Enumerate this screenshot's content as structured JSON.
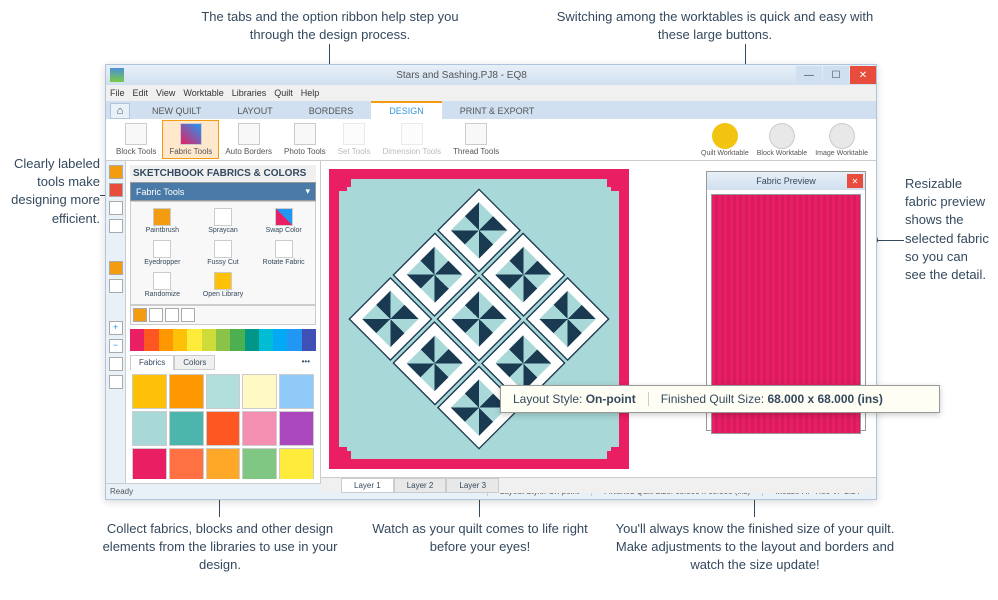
{
  "callouts": {
    "top_left": "The tabs and the option ribbon help step you through the design process.",
    "top_right": "Switching among the worktables is quick and easy with these large buttons.",
    "left": "Clearly labeled tools make designing more efficient.",
    "right": "Resizable fabric preview shows the selected fabric so you can see the detail.",
    "bottom_1": "Collect fabrics, blocks and other design elements from the libraries to use in your design.",
    "bottom_2": "Watch as your quilt comes to life right before your eyes!",
    "bottom_3": "You'll always know the finished size of your quilt. Make adjustments to the layout and borders and watch the size update!"
  },
  "window": {
    "title": "Stars and Sashing.PJ8 - EQ8",
    "menus": [
      "File",
      "Edit",
      "View",
      "Worktable",
      "Libraries",
      "Quilt",
      "Help"
    ],
    "tabs": [
      "NEW QUILT",
      "LAYOUT",
      "BORDERS",
      "DESIGN",
      "PRINT & EXPORT"
    ],
    "active_tab": 3,
    "ribbon_tools": [
      "Block Tools",
      "Fabric Tools",
      "Auto Borders",
      "Photo Tools",
      "Set Tools",
      "Dimension Tools",
      "Thread Tools"
    ],
    "ribbon_active": 1,
    "worktable_buttons": [
      {
        "label": "Quilt Worktable",
        "color": "#f1c40f"
      },
      {
        "label": "Block Worktable",
        "color": "#e8e8e8"
      },
      {
        "label": "Image Worktable",
        "color": "#e8e8e8"
      }
    ]
  },
  "side_panel": {
    "title": "SKETCHBOOK FABRICS & COLORS",
    "subtitle": "Fabric Tools",
    "tools": [
      "Paintbrush",
      "Spraycan",
      "Swap Color",
      "Eyedropper",
      "Fussy Cut",
      "Rotate Fabric",
      "Randomize",
      "Open Library"
    ],
    "fabric_tabs": [
      "Fabrics",
      "Colors"
    ],
    "fabric_tab_active": 0,
    "swatch_strip_colors": [
      "#e91e63",
      "#ff5722",
      "#ff9800",
      "#ffc107",
      "#ffeb3b",
      "#cddc39",
      "#8bc34a",
      "#4caf50",
      "#009688",
      "#00bcd4",
      "#03a9f4",
      "#2196f3",
      "#3f51b5"
    ],
    "fabric_swatches": [
      "#ffc107",
      "#ff9800",
      "#b2dfdb",
      "#fff9c4",
      "#90caf9",
      "#a8d8d8",
      "#4db6ac",
      "#ff5722",
      "#f48fb1",
      "#ab47bc",
      "#e91e63",
      "#ff7043",
      "#ffa726",
      "#81c784",
      "#ffeb3b",
      "#fff176",
      "#ffb74d",
      "#ec407a",
      "#26a69a",
      "#1a3a52",
      "#ff9800",
      "#e91e63",
      "#ffc107",
      "#42a5f5",
      "#7e57c2"
    ]
  },
  "fabric_preview": {
    "title": "Fabric Preview",
    "color": "#e91e63"
  },
  "layers": [
    "Layer 1",
    "Layer 2",
    "Layer 3"
  ],
  "layer_active": 0,
  "status_bar": {
    "ready": "Ready",
    "layout": "Layout Style: On-point",
    "size": "Finished Quilt Size: 68.000 x 68.000 (ins)",
    "mouse": "Mouse H: -7.88  V: -2.24"
  },
  "info_overlay": {
    "layout_label": "Layout Style:",
    "layout_value": "On-point",
    "size_label": "Finished Quilt Size:",
    "size_value": "68.000 x 68.000 (ins)"
  },
  "quilt": {
    "border_color": "#e91e63",
    "background_color": "#a8d8d8",
    "block_border": "#1a3a52"
  }
}
